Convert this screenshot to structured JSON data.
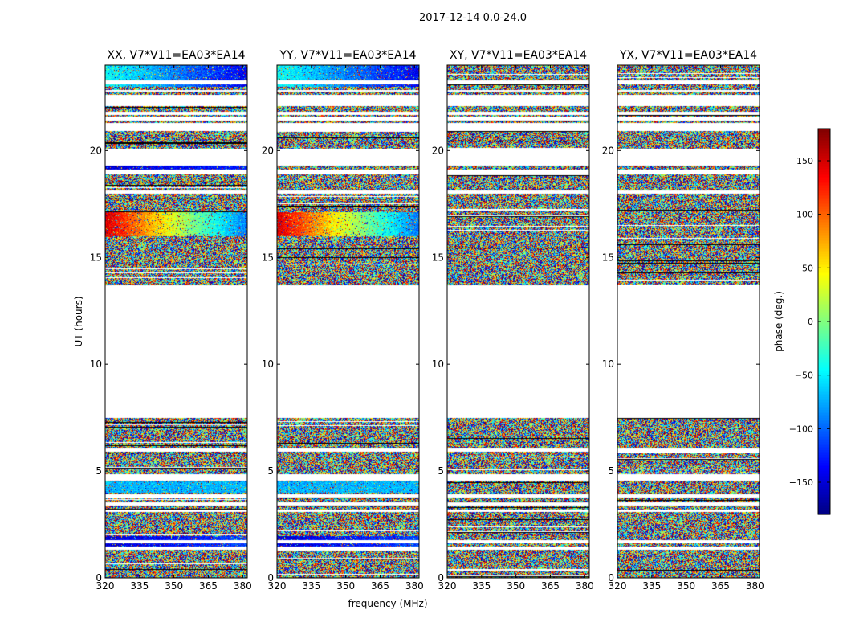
{
  "chart_data": {
    "type": "heatmap",
    "title": "2017-12-14 0.0-24.0",
    "xlabel": "frequency (MHz)",
    "ylabel": "UT (hours)",
    "xlim": [
      320,
      382
    ],
    "ylim": [
      0,
      24
    ],
    "xticks": [
      320,
      335,
      350,
      365,
      380
    ],
    "yticks": [
      0,
      5,
      10,
      15,
      20
    ],
    "panels": [
      {
        "name": "XX",
        "title": "XX, V7*V11=EA03*EA14"
      },
      {
        "name": "YY",
        "title": "YY, V7*V11=EA03*EA14"
      },
      {
        "name": "XY",
        "title": "XY, V7*V11=EA03*EA14"
      },
      {
        "name": "YX",
        "title": "YX, V7*V11=EA03*EA14"
      }
    ],
    "data_coverage_hours": [
      [
        0.0,
        1.3
      ],
      [
        1.45,
        1.6
      ],
      [
        1.75,
        3.1
      ],
      [
        3.2,
        3.4
      ],
      [
        3.55,
        3.75
      ],
      [
        3.9,
        4.55
      ],
      [
        4.85,
        5.9
      ],
      [
        6.05,
        7.5
      ],
      [
        13.7,
        18.0
      ],
      [
        18.15,
        18.9
      ],
      [
        19.1,
        19.3
      ],
      [
        20.1,
        20.9
      ],
      [
        21.3,
        21.4
      ],
      [
        21.6,
        21.65
      ],
      [
        21.8,
        22.1
      ],
      [
        22.6,
        22.75
      ],
      [
        22.85,
        23.1
      ],
      [
        23.3,
        23.5
      ],
      [
        23.5,
        24.0
      ]
    ],
    "coherent_features": [
      {
        "panels": [
          "XX",
          "YY"
        ],
        "t": [
          16.0,
          17.1
        ],
        "phase_start_deg": 150,
        "phase_end_deg": -95
      },
      {
        "panels": [
          "XX",
          "YY"
        ],
        "t": [
          23.0,
          24.0
        ],
        "phase_start_deg": -40,
        "phase_end_deg": -140
      },
      {
        "panels": [
          "XX",
          "YY"
        ],
        "t": [
          1.45,
          1.95
        ],
        "phase_start_deg": -150,
        "phase_end_deg": -110
      },
      {
        "panels": [
          "XX",
          "YY"
        ],
        "t": [
          4.0,
          4.5
        ],
        "phase_start_deg": -70,
        "phase_end_deg": -70
      },
      {
        "panels": [
          "XX"
        ],
        "t": [
          19.0,
          19.3
        ],
        "phase_start_deg": -150,
        "phase_end_deg": -120
      }
    ],
    "colorbar": {
      "label": "phase (deg.)",
      "range": [
        -180,
        180
      ],
      "ticks": [
        150,
        100,
        50,
        0,
        -50,
        -100,
        -150
      ],
      "tick_labels": [
        "150",
        "100",
        "50",
        "0",
        "−50",
        "−100",
        "−150"
      ],
      "colormap": "jet"
    }
  }
}
